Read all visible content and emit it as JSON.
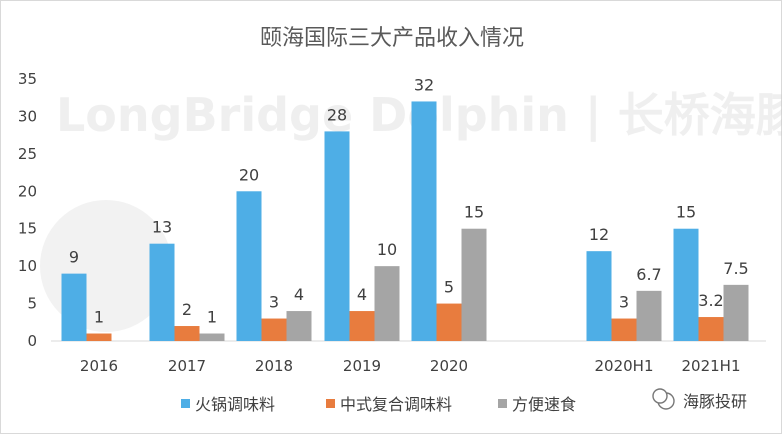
{
  "chart_data": {
    "type": "bar",
    "title": "颐海国际三大产品收入情况",
    "categories": [
      "2016",
      "2017",
      "2018",
      "2019",
      "2020",
      "2020H1",
      "2021H1"
    ],
    "series": [
      {
        "name": "火锅调味料",
        "color": "#4eaee6",
        "values": [
          9,
          13,
          20,
          28,
          32,
          12,
          15
        ],
        "labels": [
          "9",
          "13",
          "20",
          "28",
          "32",
          "12",
          "15"
        ]
      },
      {
        "name": "中式复合调味料",
        "color": "#e87c3e",
        "values": [
          1,
          2,
          3,
          4,
          5,
          3,
          3.2
        ],
        "labels": [
          "1",
          "2",
          "3",
          "4",
          "5",
          "3",
          "3.2"
        ]
      },
      {
        "name": "方便速食",
        "color": "#a5a5a5",
        "values": [
          null,
          1,
          4,
          10,
          15,
          6.7,
          7.5
        ],
        "labels": [
          "",
          "1",
          "4",
          "10",
          "15",
          "6.7",
          "7.5"
        ]
      }
    ],
    "yticks": [
      "0",
      "5",
      "10",
      "15",
      "20",
      "25",
      "30",
      "35"
    ],
    "ylim": [
      0,
      35
    ],
    "xlabel": "",
    "ylabel": "",
    "grid": false,
    "legend": "bottom"
  },
  "watermark": {
    "text": "LongBridge Dolphin | 长桥海豚投研",
    "source": "海豚投研"
  }
}
